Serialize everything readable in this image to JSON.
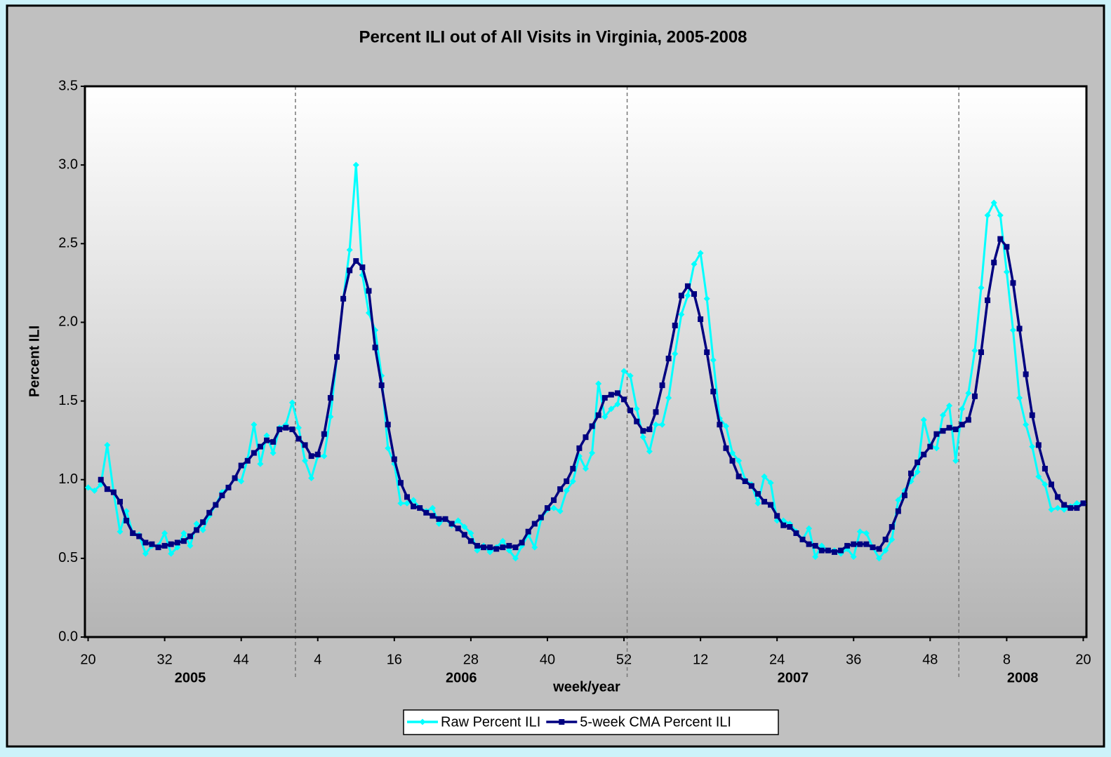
{
  "chart_data": {
    "type": "line",
    "title": "Percent ILI out of All Visits in Virginia, 2005-2008",
    "xlabel": "week/year",
    "ylabel": "Percent ILI",
    "years": [
      "2005",
      "2006",
      "2007",
      "2008"
    ],
    "categories": [
      "20",
      null,
      null,
      null,
      null,
      null,
      null,
      null,
      null,
      null,
      null,
      null,
      "32",
      null,
      null,
      null,
      null,
      null,
      null,
      null,
      null,
      null,
      null,
      null,
      "44",
      null,
      null,
      null,
      null,
      null,
      null,
      null,
      null,
      null,
      null,
      null,
      "4",
      null,
      null,
      null,
      null,
      null,
      null,
      null,
      null,
      null,
      null,
      null,
      "16",
      null,
      null,
      null,
      null,
      null,
      null,
      null,
      null,
      null,
      null,
      null,
      "28",
      null,
      null,
      null,
      null,
      null,
      null,
      null,
      null,
      null,
      null,
      null,
      "40",
      null,
      null,
      null,
      null,
      null,
      null,
      null,
      null,
      null,
      null,
      null,
      "52",
      null,
      null,
      null,
      null,
      null,
      null,
      null,
      null,
      null,
      null,
      null,
      "12",
      null,
      null,
      null,
      null,
      null,
      null,
      null,
      null,
      null,
      null,
      null,
      "24",
      null,
      null,
      null,
      null,
      null,
      null,
      null,
      null,
      null,
      null,
      null,
      "36",
      null,
      null,
      null,
      null,
      null,
      null,
      null,
      null,
      null,
      null,
      null,
      "48",
      null,
      null,
      null,
      null,
      null,
      null,
      null,
      null,
      null,
      null,
      null,
      "8",
      null,
      null,
      null,
      null,
      null,
      null,
      null,
      null,
      null,
      null,
      null,
      "20"
    ],
    "series": [
      {
        "name": "Raw Percent ILI",
        "color": "#00ffff",
        "marker": "diamond",
        "values": [
          0.95,
          0.93,
          0.97,
          1.22,
          0.92,
          0.67,
          0.8,
          0.66,
          0.65,
          0.53,
          0.58,
          0.58,
          0.66,
          0.53,
          0.57,
          0.66,
          0.58,
          0.72,
          0.68,
          0.77,
          0.84,
          0.92,
          0.95,
          1.01,
          0.99,
          1.13,
          1.35,
          1.1,
          1.28,
          1.17,
          1.33,
          1.35,
          1.49,
          1.33,
          1.12,
          1.01,
          1.15,
          1.15,
          1.4,
          1.78,
          2.15,
          2.46,
          3.0,
          2.3,
          2.06,
          1.95,
          1.66,
          1.2,
          1.1,
          0.85,
          0.85,
          0.87,
          0.82,
          0.8,
          0.82,
          0.72,
          0.75,
          0.71,
          0.74,
          0.7,
          0.66,
          0.55,
          0.58,
          0.54,
          0.57,
          0.61,
          0.55,
          0.5,
          0.58,
          0.65,
          0.57,
          0.75,
          0.81,
          0.82,
          0.8,
          0.93,
          0.99,
          1.15,
          1.07,
          1.17,
          1.61,
          1.4,
          1.45,
          1.48,
          1.69,
          1.66,
          1.45,
          1.27,
          1.18,
          1.35,
          1.35,
          1.52,
          1.8,
          2.05,
          2.17,
          2.37,
          2.44,
          2.15,
          1.76,
          1.39,
          1.34,
          1.17,
          1.12,
          1.0,
          0.97,
          0.85,
          1.02,
          0.98,
          0.74,
          0.74,
          0.72,
          0.67,
          0.62,
          0.69,
          0.51,
          0.58,
          0.55,
          0.55,
          0.53,
          0.56,
          0.51,
          0.67,
          0.66,
          0.57,
          0.5,
          0.55,
          0.62,
          0.87,
          0.93,
          0.99,
          1.05,
          1.38,
          1.22,
          1.2,
          1.41,
          1.47,
          1.12,
          1.45,
          1.55,
          1.82,
          2.22,
          2.68,
          2.76,
          2.68,
          2.32,
          1.95,
          1.52,
          1.35,
          1.21,
          1.02,
          0.97,
          0.81,
          0.82,
          0.81,
          0.83,
          0.85,
          0.85
        ]
      },
      {
        "name": "5-week CMA Percent ILI",
        "color": "#000080",
        "marker": "square",
        "values": [
          null,
          null,
          1.0,
          0.94,
          0.92,
          0.86,
          0.74,
          0.66,
          0.64,
          0.6,
          0.59,
          0.57,
          0.58,
          0.59,
          0.6,
          0.61,
          0.64,
          0.68,
          0.73,
          0.79,
          0.84,
          0.9,
          0.95,
          1.01,
          1.09,
          1.12,
          1.17,
          1.21,
          1.25,
          1.24,
          1.32,
          1.33,
          1.32,
          1.26,
          1.22,
          1.15,
          1.16,
          1.29,
          1.52,
          1.78,
          2.15,
          2.33,
          2.39,
          2.35,
          2.2,
          1.84,
          1.6,
          1.35,
          1.13,
          0.98,
          0.89,
          0.83,
          0.82,
          0.79,
          0.77,
          0.75,
          0.75,
          0.72,
          0.69,
          0.65,
          0.61,
          0.58,
          0.57,
          0.57,
          0.56,
          0.57,
          0.58,
          0.57,
          0.6,
          0.67,
          0.72,
          0.76,
          0.82,
          0.87,
          0.94,
          0.99,
          1.07,
          1.2,
          1.27,
          1.34,
          1.41,
          1.52,
          1.54,
          1.55,
          1.51,
          1.44,
          1.37,
          1.31,
          1.32,
          1.43,
          1.6,
          1.77,
          1.98,
          2.17,
          2.23,
          2.18,
          2.02,
          1.81,
          1.56,
          1.35,
          1.2,
          1.12,
          1.02,
          0.99,
          0.96,
          0.91,
          0.86,
          0.84,
          0.77,
          0.71,
          0.7,
          0.66,
          0.62,
          0.59,
          0.58,
          0.55,
          0.55,
          0.54,
          0.55,
          0.58,
          0.59,
          0.59,
          0.59,
          0.57,
          0.56,
          0.62,
          0.7,
          0.8,
          0.9,
          1.04,
          1.11,
          1.16,
          1.21,
          1.29,
          1.31,
          1.33,
          1.32,
          1.35,
          1.38,
          1.53,
          1.81,
          2.14,
          2.38,
          2.53,
          2.48,
          2.25,
          1.96,
          1.67,
          1.41,
          1.22,
          1.07,
          0.97,
          0.89,
          0.84,
          0.82,
          0.82,
          0.85
        ]
      }
    ],
    "ylim": [
      0,
      3.5
    ],
    "yticks": [
      {
        "value": 0,
        "label": "0.0"
      },
      0.5,
      {
        "value": 1,
        "label": "1.0"
      },
      1.5,
      {
        "value": 2,
        "label": "2.0"
      },
      2.5,
      {
        "value": 3,
        "label": "3.0"
      },
      3.5
    ],
    "grid": false,
    "legend": "bottom"
  }
}
